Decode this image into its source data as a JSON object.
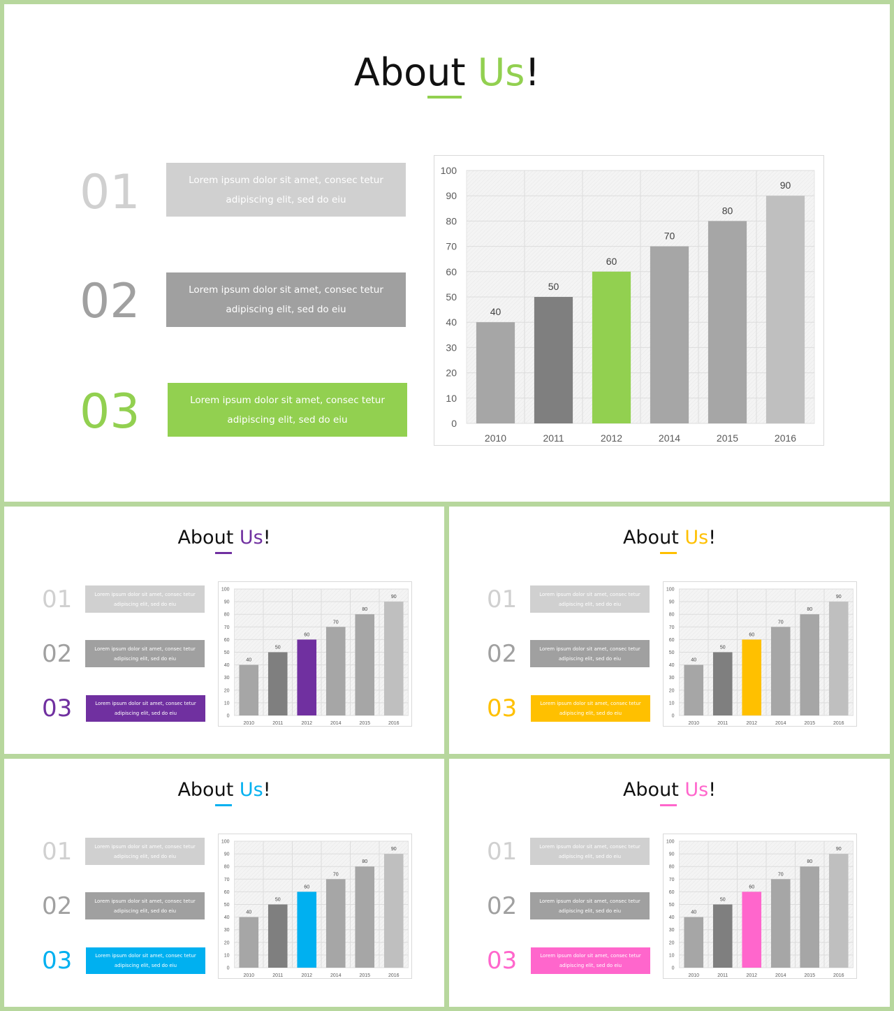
{
  "slides": [
    {
      "id": "main",
      "accent": "#92d050"
    },
    {
      "id": "a",
      "accent": "#7030a0"
    },
    {
      "id": "b",
      "accent": "#ffc000"
    },
    {
      "id": "c",
      "accent": "#00b0f0"
    },
    {
      "id": "d",
      "accent": "#ff66cc"
    }
  ],
  "title": {
    "prefix": "About ",
    "accent": "Us",
    "suffix": "!"
  },
  "items": [
    {
      "num": "01",
      "line1": "Lorem ipsum dolor sit amet, consec tetur",
      "line2": "adipiscing elit, sed do eiu"
    },
    {
      "num": "02",
      "line1": "Lorem ipsum dolor sit amet, consec tetur",
      "line2": "adipiscing elit, sed do eiu"
    },
    {
      "num": "03",
      "line1": "Lorem ipsum dolor sit amet, consec tetur",
      "line2": "adipiscing elit, sed do eiu"
    }
  ],
  "item_colors": [
    "#d0d0d0",
    "#a0a0a0"
  ],
  "chart_data": {
    "type": "bar",
    "categories": [
      "2010",
      "2011",
      "2012",
      "2014",
      "2015",
      "2016"
    ],
    "values": [
      40,
      50,
      60,
      70,
      80,
      90
    ],
    "bar_colors": [
      "#a6a6a6",
      "#7f7f7f",
      "accent",
      "#a6a6a6",
      "#a6a6a6",
      "#bfbfbf"
    ],
    "ylim": [
      0,
      100
    ],
    "yticks": [
      0,
      10,
      20,
      30,
      40,
      50,
      60,
      70,
      80,
      90,
      100
    ],
    "grid": true,
    "data_labels": true
  }
}
